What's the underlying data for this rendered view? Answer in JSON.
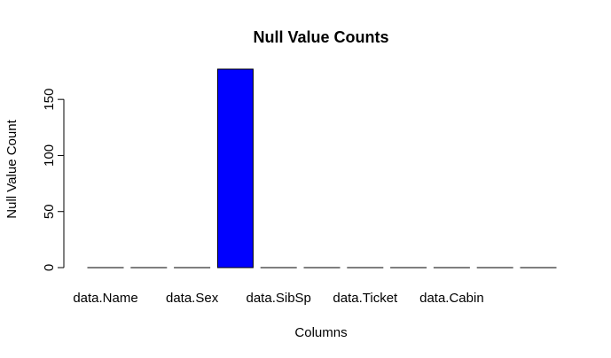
{
  "chart_data": {
    "type": "bar",
    "title": "Null Value Counts",
    "xlabel": "Columns",
    "ylabel": "Null Value Count",
    "categories": [
      "data.Name",
      "",
      "data.Sex",
      "",
      "data.SibSp",
      "",
      "data.Ticket",
      "",
      "data.Cabin",
      "",
      ""
    ],
    "values": [
      0,
      0,
      0,
      177,
      0,
      0,
      0,
      0,
      0,
      0,
      0
    ],
    "yticks": [
      0,
      50,
      100,
      150
    ],
    "ylim": [
      0,
      177
    ],
    "grid": false,
    "legend": "none",
    "bar_color": "#0000ff"
  }
}
